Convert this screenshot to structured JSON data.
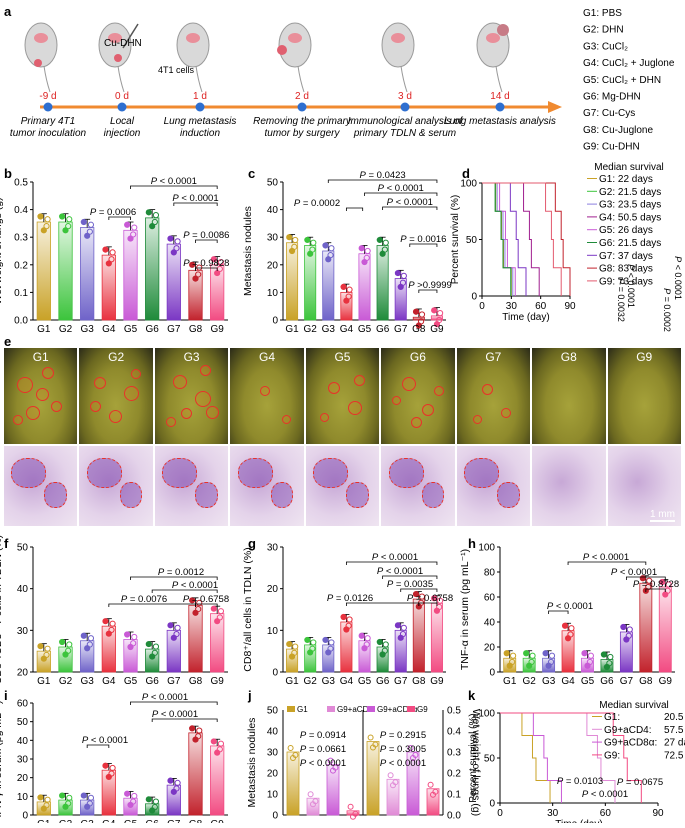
{
  "panel_letters": [
    "a",
    "b",
    "c",
    "d",
    "e",
    "f",
    "g",
    "h",
    "i",
    "j",
    "k"
  ],
  "timeline": {
    "days": [
      "-9 d",
      "0 d",
      "1 d",
      "2 d",
      "3 d",
      "14 d"
    ],
    "events": [
      [
        "Primary 4T1",
        "tumor inoculation"
      ],
      [
        "Local",
        "injection"
      ],
      [
        "Lung metastasis",
        "induction"
      ],
      [
        "Removing the primary",
        "tumor by surgery"
      ],
      [
        "Immunological analysis of",
        "primary TDLN & serum"
      ],
      [
        "Lung metastasis analysis"
      ]
    ],
    "injection_label": "Cu-DHN",
    "cells_label": "4T1 cells",
    "groups": [
      "G1: PBS",
      "G2: DHN",
      "G3: CuCl₂",
      "G4: CuCl₂ + Juglone",
      "G5: CuCl₂ + DHN",
      "G6: Mg-DHN",
      "G7: Cu-Cys",
      "G8: Cu-Juglone",
      "G9: Cu-DHN"
    ]
  },
  "group_labels": [
    "G1",
    "G2",
    "G3",
    "G4",
    "G5",
    "G6",
    "G7",
    "G8",
    "G9"
  ],
  "group_colors": [
    "#c9a227",
    "#3cc43c",
    "#6f63c9",
    "#e8323f",
    "#c95ad6",
    "#1f8b3a",
    "#7b37c4",
    "#c2222c",
    "#f24b82"
  ],
  "chart_data": [
    {
      "id": "b",
      "type": "bar",
      "categories": [
        "G1",
        "G2",
        "G3",
        "G4",
        "G5",
        "G6",
        "G7",
        "G8",
        "G9"
      ],
      "values": [
        0.355,
        0.355,
        0.335,
        0.235,
        0.325,
        0.37,
        0.275,
        0.18,
        0.2
      ],
      "ylabel": "Wet weight of lungs (g)",
      "ylim": [
        0,
        0.5
      ],
      "yticks": [
        "0.0",
        "0.1",
        "0.2",
        "0.3",
        "0.4",
        "0.5"
      ],
      "annotations": [
        "P = 0.0006",
        "P < 0.0001",
        "P < 0.0001",
        "P = 0.0086",
        "P = 0.9828"
      ]
    },
    {
      "id": "c",
      "type": "bar",
      "categories": [
        "G1",
        "G2",
        "G3",
        "G4",
        "G5",
        "G6",
        "G7",
        "G8",
        "G9"
      ],
      "values": [
        28,
        27,
        25,
        10,
        24,
        27,
        15,
        1,
        1.5
      ],
      "ylabel": "Metastasis nodules",
      "ylim": [
        0,
        50
      ],
      "yticks": [
        "0",
        "10",
        "20",
        "30",
        "40",
        "50"
      ],
      "annotations": [
        "P = 0.0002",
        "P = 0.0423",
        "P < 0.0001",
        "P < 0.0001",
        "P = 0.0016",
        "P >0.9999"
      ]
    },
    {
      "id": "e",
      "type": "line",
      "title": "Median survival",
      "ylabel": "Percent survival (%)",
      "xlabel": "Time (day)",
      "xticks": [
        "0",
        "30",
        "60",
        "90"
      ],
      "yticks": [
        "0",
        "50",
        "100"
      ],
      "legend": [
        "G1: 22 days",
        "G2: 21.5 days",
        "G3: 23.5 days",
        "G4: 50.5 days",
        "G5: 26 days",
        "G6: 21.5 days",
        "G7: 37 days",
        "G8: 83 days",
        "G9: 73 days"
      ],
      "medians": [
        22,
        21.5,
        23.5,
        50.5,
        26,
        21.5,
        37,
        83,
        73
      ],
      "annotations": [
        "P < 0.0001",
        "P = 0.0032",
        "P = 0.0002",
        "P < 0.0001"
      ]
    },
    {
      "id": "f",
      "type": "bar",
      "categories": [
        "G1",
        "G2",
        "G3",
        "G4",
        "G5",
        "G6",
        "G7",
        "G8",
        "G9"
      ],
      "values": [
        25,
        26,
        27.5,
        31,
        27.8,
        25.5,
        30,
        36,
        34
      ],
      "ylabel": "CD8⁺/CD3⁺ T cells in TDLN (%)",
      "ylim": [
        20,
        50
      ],
      "yticks": [
        "20",
        "30",
        "40",
        "50"
      ],
      "annotations": [
        "P = 0.0012",
        "P < 0.0001",
        "P = 0.0076",
        "P = 0.6758"
      ]
    },
    {
      "id": "g",
      "type": "bar",
      "categories": [
        "G1",
        "G2",
        "G3",
        "G4",
        "G5",
        "G6",
        "G7",
        "G8",
        "G9"
      ],
      "values": [
        5.5,
        6.5,
        6.5,
        12,
        7.5,
        6,
        10,
        17.5,
        16.5
      ],
      "ylabel": "CD8⁺/all cells in TDLN (%)",
      "ylim": [
        0,
        30
      ],
      "yticks": [
        "0",
        "10",
        "20",
        "30"
      ],
      "annotations": [
        "P < 0.0001",
        "P < 0.0001",
        "P = 0.0035",
        "P = 0.0126",
        "P = 0.6758"
      ]
    },
    {
      "id": "h",
      "type": "bar",
      "categories": [
        "G1",
        "G2",
        "G3",
        "G4",
        "G5",
        "G6",
        "G7",
        "G8",
        "G9"
      ],
      "values": [
        11,
        11,
        11,
        33,
        11,
        10,
        32,
        71,
        68
      ],
      "ylabel": "TNF-α in serum (pg mL⁻¹)",
      "ylim": [
        0,
        100
      ],
      "yticks": [
        "0",
        "20",
        "40",
        "60",
        "80",
        "100"
      ],
      "annotations": [
        "P < 0.0001",
        "P < 0.0001",
        "P < 0.0001",
        "P = 0.8728"
      ]
    },
    {
      "id": "i",
      "type": "bar",
      "categories": [
        "G1",
        "G2",
        "G3",
        "G4",
        "G5",
        "G6",
        "G7",
        "G8",
        "G9"
      ],
      "values": [
        7,
        8,
        8,
        24,
        9,
        6,
        16,
        44,
        37
      ],
      "ylabel": "IFN-γ in serum (pg mL⁻¹)",
      "ylim": [
        0,
        60
      ],
      "yticks": [
        "0",
        "10",
        "20",
        "30",
        "40",
        "50",
        "60"
      ],
      "annotations": [
        "P < 0.0001",
        "P < 0.0001",
        "P < 0.0001"
      ]
    },
    {
      "id": "j",
      "type": "bar",
      "legend": [
        "G1",
        "G9+aCD4",
        "G9+aCD8α",
        "G9"
      ],
      "colors": [
        "#c9a227",
        "#e08ad6",
        "#c95ad6",
        "#f24b82"
      ],
      "values_nodules": [
        30,
        8,
        24,
        2
      ],
      "values_weight": [
        0.35,
        0.17,
        0.3,
        0.125
      ],
      "ylabel": "Metastasis nodules",
      "ylabel2": "Wet weight of lungs (g)",
      "ylim": [
        0,
        50
      ],
      "ylim2": [
        0,
        0.5
      ],
      "yticks": [
        "0",
        "10",
        "20",
        "30",
        "40",
        "50"
      ],
      "yticks2": [
        "0.0",
        "0.1",
        "0.2",
        "0.3",
        "0.4",
        "0.5"
      ],
      "annotations": [
        "P = 0.0914",
        "P = 0.0661",
        "P < 0.0001",
        "P = 0.2915",
        "P = 0.3005",
        "P < 0.0001"
      ]
    },
    {
      "id": "k",
      "type": "line",
      "title": "Median survival",
      "ylabel": "Percent survival (%)",
      "xlabel": "Time (day)",
      "xticks": [
        "0",
        "30",
        "60",
        "90"
      ],
      "yticks": [
        "0",
        "50",
        "100"
      ],
      "legend": [
        "G1:",
        "G9+aCD4:",
        "G9+aCD8α:",
        "G9:"
      ],
      "legend_values": [
        "20.5 days",
        "57.5 days",
        "27 days",
        "72.5 days"
      ],
      "medians": [
        20.5,
        57.5,
        27,
        72.5
      ],
      "colors": [
        "#c9a227",
        "#e08ad6",
        "#c95ad6",
        "#f24b82"
      ],
      "annotations": [
        "P = 0.0675",
        "P = 0.0103",
        "P < 0.0001"
      ]
    }
  ],
  "panel_d": {
    "scale_bar": "1 mm"
  }
}
